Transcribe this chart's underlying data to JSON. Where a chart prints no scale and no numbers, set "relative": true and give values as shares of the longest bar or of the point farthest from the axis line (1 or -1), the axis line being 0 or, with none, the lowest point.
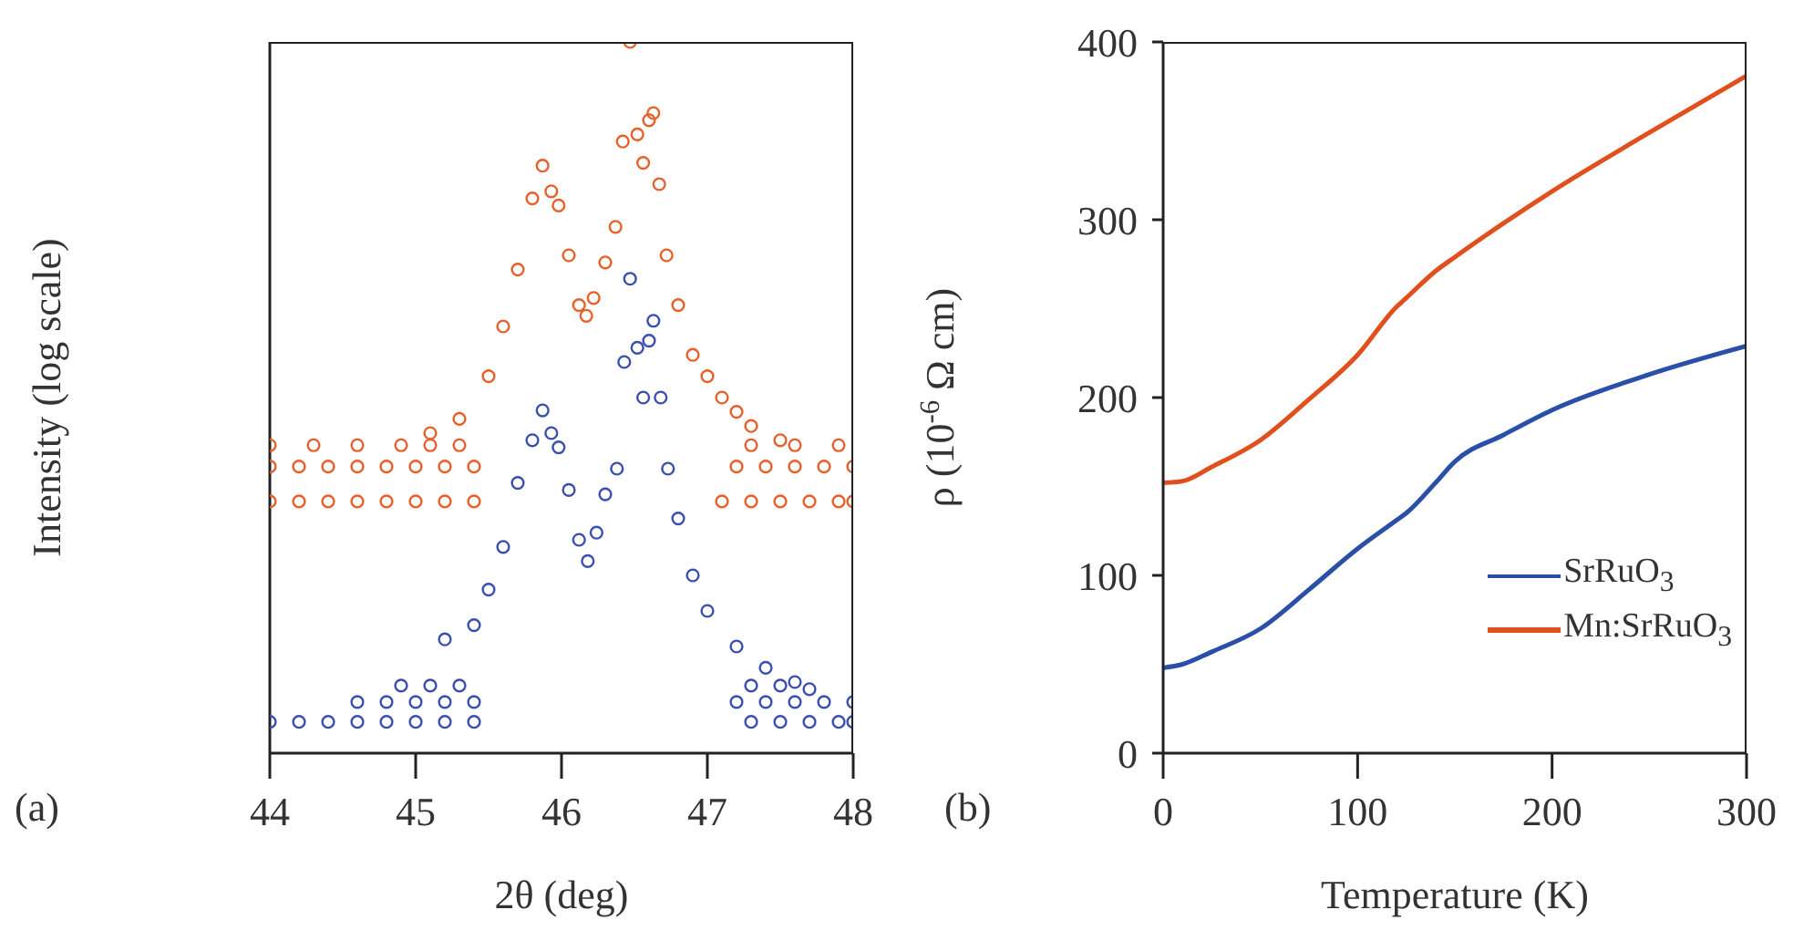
{
  "chart_data": [
    {
      "type": "scatter",
      "relative": true,
      "xlabel": "2θ (deg)",
      "ylabel": "Intensity (log scale)",
      "xlim": [
        44,
        48
      ],
      "xticks": [
        44,
        45,
        46,
        47,
        48
      ],
      "marker": "circle",
      "legend": false,
      "annotations": [
        "(a)"
      ],
      "series": [
        {
          "color": "#e8602a",
          "x": [
            44.0,
            44.2,
            44.4,
            44.6,
            44.8,
            45.0,
            45.2,
            45.4,
            44.0,
            44.2,
            44.4,
            44.6,
            44.8,
            45.0,
            45.2,
            45.4,
            44.0,
            44.3,
            44.6,
            44.9,
            45.1,
            45.3,
            45.1,
            45.3,
            45.5,
            45.6,
            45.7,
            45.8,
            45.87,
            45.93,
            45.98,
            46.05,
            46.12,
            46.17,
            46.22,
            46.3,
            46.37,
            46.42,
            46.47,
            46.52,
            46.56,
            46.6,
            46.63,
            46.67,
            46.72,
            46.8,
            46.9,
            47.0,
            47.1,
            47.2,
            47.3,
            47.5,
            47.1,
            47.3,
            47.5,
            47.7,
            47.9,
            48.0,
            47.2,
            47.4,
            47.6,
            47.8,
            48.0,
            47.3,
            47.6,
            47.9
          ],
          "values": [
            0.354,
            0.354,
            0.354,
            0.354,
            0.354,
            0.354,
            0.354,
            0.354,
            0.403,
            0.403,
            0.403,
            0.403,
            0.403,
            0.403,
            0.403,
            0.403,
            0.433,
            0.433,
            0.433,
            0.433,
            0.433,
            0.433,
            0.45,
            0.47,
            0.53,
            0.6,
            0.68,
            0.78,
            0.826,
            0.79,
            0.77,
            0.7,
            0.63,
            0.615,
            0.64,
            0.69,
            0.74,
            0.86,
            1.0,
            0.87,
            0.83,
            0.89,
            0.9,
            0.8,
            0.7,
            0.63,
            0.56,
            0.53,
            0.5,
            0.48,
            0.46,
            0.44,
            0.354,
            0.354,
            0.354,
            0.354,
            0.354,
            0.354,
            0.403,
            0.403,
            0.403,
            0.403,
            0.403,
            0.433,
            0.433,
            0.433
          ]
        },
        {
          "color": "#3a4fb0",
          "x": [
            44.0,
            44.2,
            44.4,
            44.6,
            44.8,
            45.0,
            45.2,
            45.4,
            44.6,
            44.8,
            45.0,
            45.2,
            45.4,
            44.9,
            45.1,
            45.3,
            45.2,
            45.4,
            45.5,
            45.6,
            45.7,
            45.8,
            45.87,
            45.93,
            45.98,
            46.05,
            46.12,
            46.18,
            46.24,
            46.3,
            46.38,
            46.43,
            46.47,
            46.52,
            46.56,
            46.6,
            46.63,
            46.68,
            46.73,
            46.8,
            46.9,
            47.0,
            47.2,
            47.4,
            47.6,
            47.7,
            47.3,
            47.5,
            47.7,
            47.9,
            48.0,
            47.2,
            47.4,
            47.6,
            47.8,
            48.0,
            47.3,
            47.5
          ],
          "values": [
            0.044,
            0.044,
            0.044,
            0.044,
            0.044,
            0.044,
            0.044,
            0.044,
            0.072,
            0.072,
            0.072,
            0.072,
            0.072,
            0.095,
            0.095,
            0.095,
            0.16,
            0.18,
            0.23,
            0.29,
            0.38,
            0.44,
            0.482,
            0.45,
            0.43,
            0.37,
            0.3,
            0.27,
            0.31,
            0.364,
            0.4,
            0.55,
            0.667,
            0.57,
            0.5,
            0.58,
            0.608,
            0.5,
            0.4,
            0.33,
            0.25,
            0.2,
            0.15,
            0.12,
            0.1,
            0.09,
            0.044,
            0.044,
            0.044,
            0.044,
            0.044,
            0.072,
            0.072,
            0.072,
            0.072,
            0.072,
            0.095,
            0.095
          ]
        }
      ]
    },
    {
      "type": "line",
      "xlabel": "Temperature (K)",
      "ylabel": "ρ (10$^{-6}$ Ω cm)",
      "xlim": [
        0,
        300
      ],
      "xticks": [
        0,
        100,
        200,
        300
      ],
      "ylim": [
        0,
        400
      ],
      "yticks": [
        0,
        100,
        200,
        300,
        400
      ],
      "legend": "bottom right",
      "annotations": [
        "(b)"
      ],
      "x": [
        0,
        10,
        25,
        50,
        75,
        100,
        120,
        125,
        140,
        150,
        175,
        200,
        250,
        300
      ],
      "series": [
        {
          "name": "SrRuO$_{3}$",
          "color": "#2a4fa8",
          "values": [
            48,
            50,
            57,
            70,
            92,
            115,
            131,
            135,
            152,
            164,
            179,
            193,
            213,
            229
          ]
        },
        {
          "name": "Mn:SrRuO$_{3}$",
          "color": "#e0501e",
          "values": [
            152,
            153,
            161,
            176,
            199,
            224,
            251,
            256,
            271,
            279,
            298,
            316,
            349,
            381
          ]
        }
      ]
    }
  ]
}
